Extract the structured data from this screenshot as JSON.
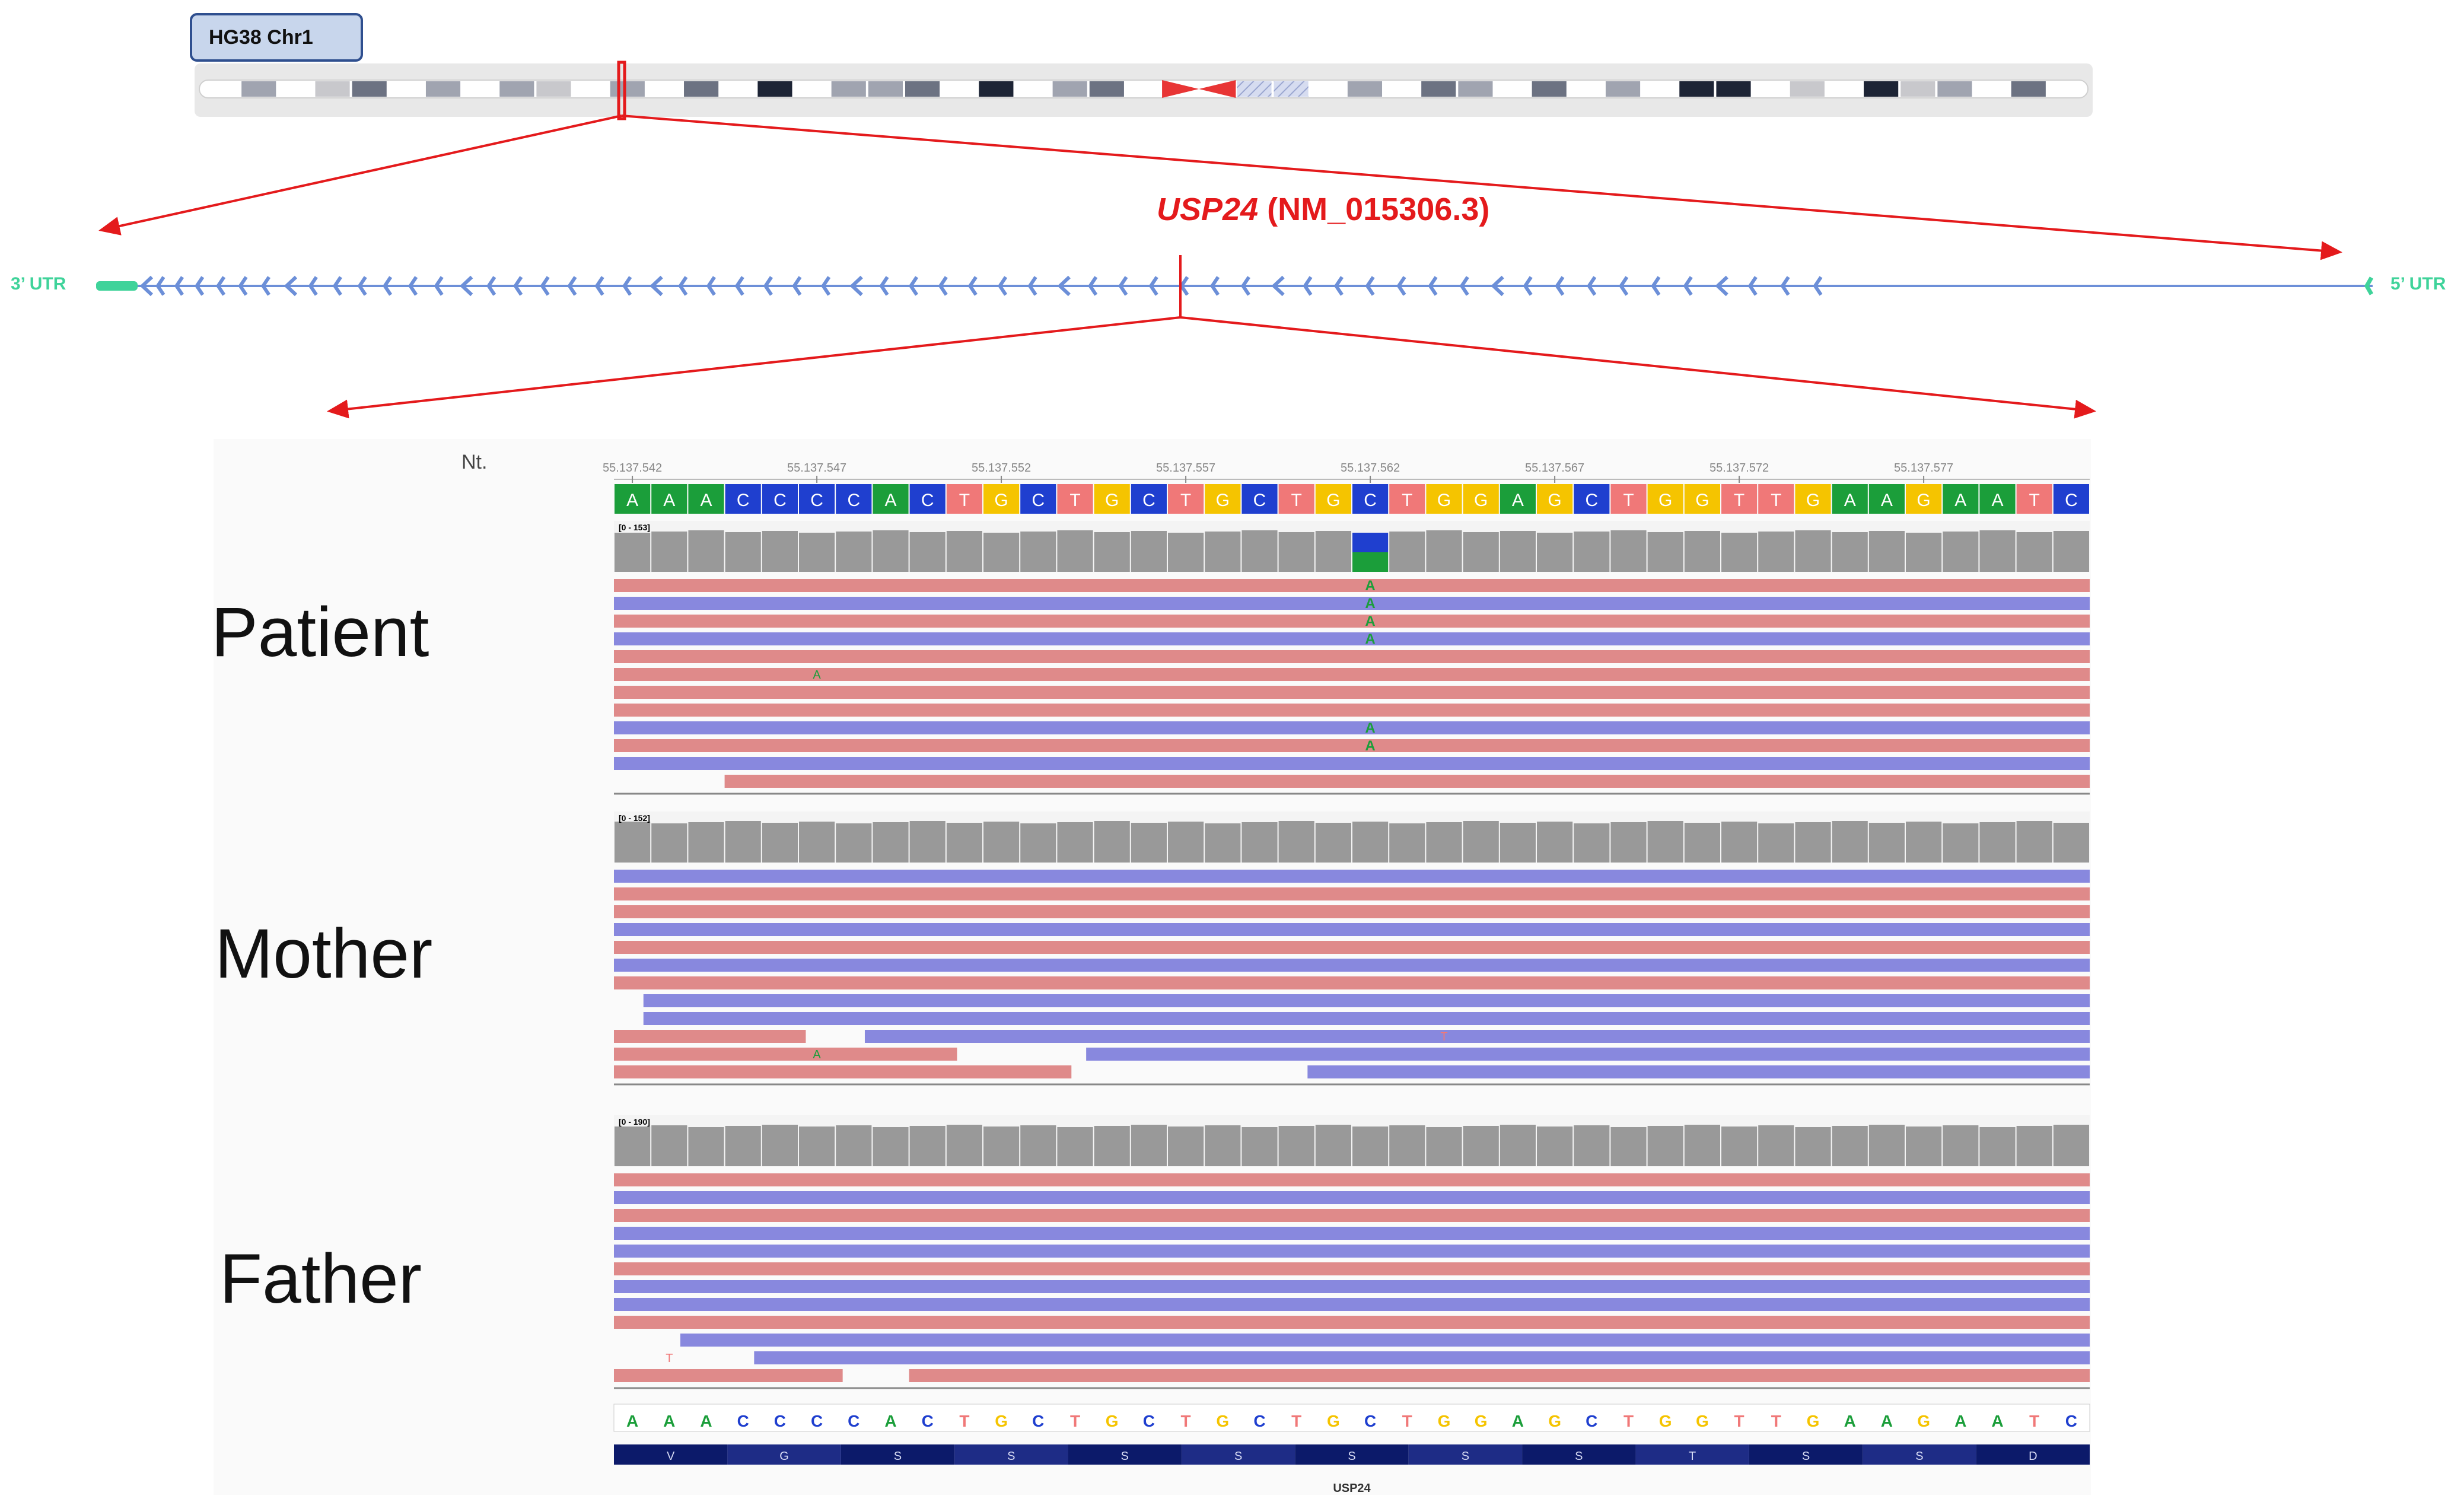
{
  "ideogram": {
    "label": "HG38 Chr1",
    "bands": [
      "gneg",
      "gpos50",
      "gneg",
      "gpos25",
      "gpos75",
      "gneg",
      "gpos50",
      "gneg",
      "gpos50",
      "gpos25",
      "gneg",
      "gpos50",
      "gneg",
      "gpos75",
      "gneg",
      "gpos100",
      "gneg",
      "gpos50",
      "gpos50",
      "gpos75",
      "gneg",
      "gpos100",
      "gneg",
      "gpos50",
      "gpos75",
      "gneg",
      "acen",
      "acen",
      "gvar",
      "gvar",
      "gneg",
      "gpos50",
      "gneg",
      "gpos75",
      "gpos50",
      "gneg",
      "gpos75",
      "gneg",
      "gpos50",
      "gneg",
      "gpos100",
      "gpos100",
      "gneg",
      "gpos25",
      "gneg",
      "gpos100",
      "gpos25",
      "gpos50",
      "gneg",
      "gpos75",
      "gneg"
    ]
  },
  "gene": {
    "symbol": "USP24",
    "transcript": "(NM_015306.3)",
    "utr3": "3’ UTR",
    "utr5": "5’ UTR",
    "exon_marks": 60
  },
  "igv": {
    "nt_label": "Nt.",
    "ruler_ticks": [
      "55.137.542",
      "55.137.547",
      "55.137.552",
      "55.137.557",
      "55.137.562",
      "55.137.567",
      "55.137.572",
      "55.137.577"
    ],
    "reference": [
      "A",
      "A",
      "A",
      "C",
      "C",
      "C",
      "C",
      "A",
      "C",
      "T",
      "G",
      "C",
      "T",
      "G",
      "C",
      "T",
      "G",
      "C",
      "T",
      "G",
      "C",
      "T",
      "G",
      "G",
      "A",
      "G",
      "C",
      "T",
      "G",
      "G",
      "T",
      "T",
      "G",
      "A",
      "A",
      "G",
      "A",
      "A",
      "T",
      "C"
    ],
    "variant_column": 20,
    "base_colors": {
      "A": "#1b9e3a",
      "C": "#1f3fcf",
      "G": "#f5c400",
      "T": "#f07878"
    },
    "read_colors": {
      "forward": "#df8a8a",
      "reverse": "#8888de"
    },
    "samples": [
      {
        "label": "Patient",
        "coverage_label": "[0 - 153]",
        "variant_base": "A",
        "variant_rows": [
          1,
          2,
          3,
          4,
          9,
          10
        ],
        "mismatches": [
          {
            "row": 6,
            "col": 5,
            "base": "A"
          }
        ]
      },
      {
        "label": "Mother",
        "coverage_label": "[0 - 152]",
        "mismatches": [
          {
            "row": 10,
            "col": 22,
            "base": "T"
          },
          {
            "row": 11,
            "col": 5,
            "base": "A"
          }
        ]
      },
      {
        "label": "Father",
        "coverage_label": "[0 - 190]",
        "mismatches": [
          {
            "row": 11,
            "col": 1,
            "base": "T"
          }
        ]
      }
    ],
    "amino_acids": [
      "V",
      "G",
      "S",
      "S",
      "S",
      "S",
      "S",
      "S",
      "S",
      "T",
      "S",
      "S",
      "D"
    ],
    "gene_track_label": "USP24"
  }
}
